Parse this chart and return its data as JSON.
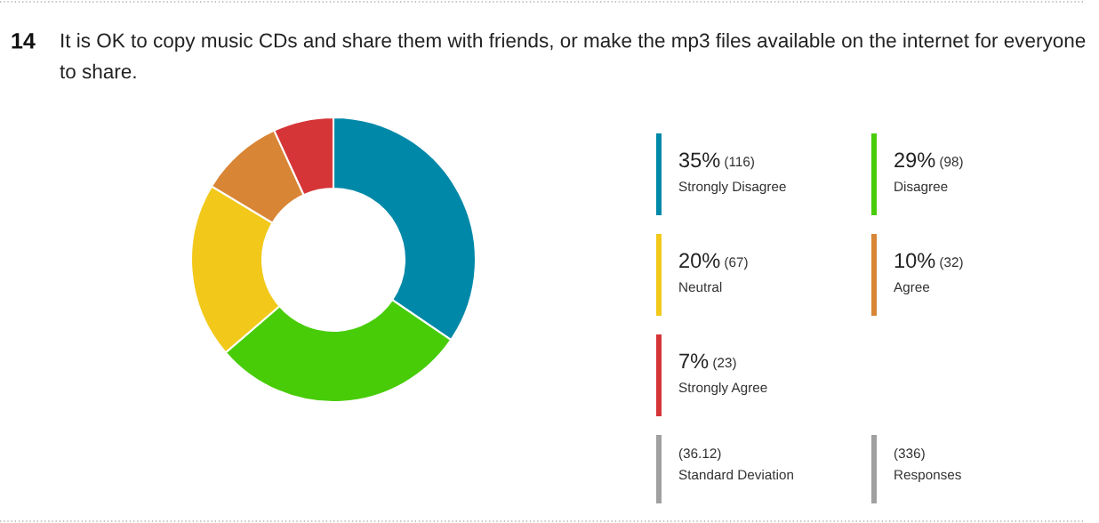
{
  "chart_data": {
    "type": "donut",
    "title": "It is OK to copy music CDs and share them with friends, or make the mp3 files available on the internet for everyone to share.",
    "categories": [
      "Strongly Disagree",
      "Disagree",
      "Neutral",
      "Agree",
      "Strongly Agree"
    ],
    "values": [
      116,
      98,
      67,
      32,
      23
    ],
    "colors": [
      "#0088a8",
      "#48cc08",
      "#f2c91a",
      "#d98536",
      "#d63538"
    ],
    "value_labels": [
      "35% (116)",
      "29% (98)",
      "20% (67)",
      "10% (32)",
      "7% (23)"
    ],
    "legend": "right",
    "annotations": [
      "14",
      "(36.12)",
      "Standard Deviation",
      "(336)",
      "Responses"
    ]
  }
}
